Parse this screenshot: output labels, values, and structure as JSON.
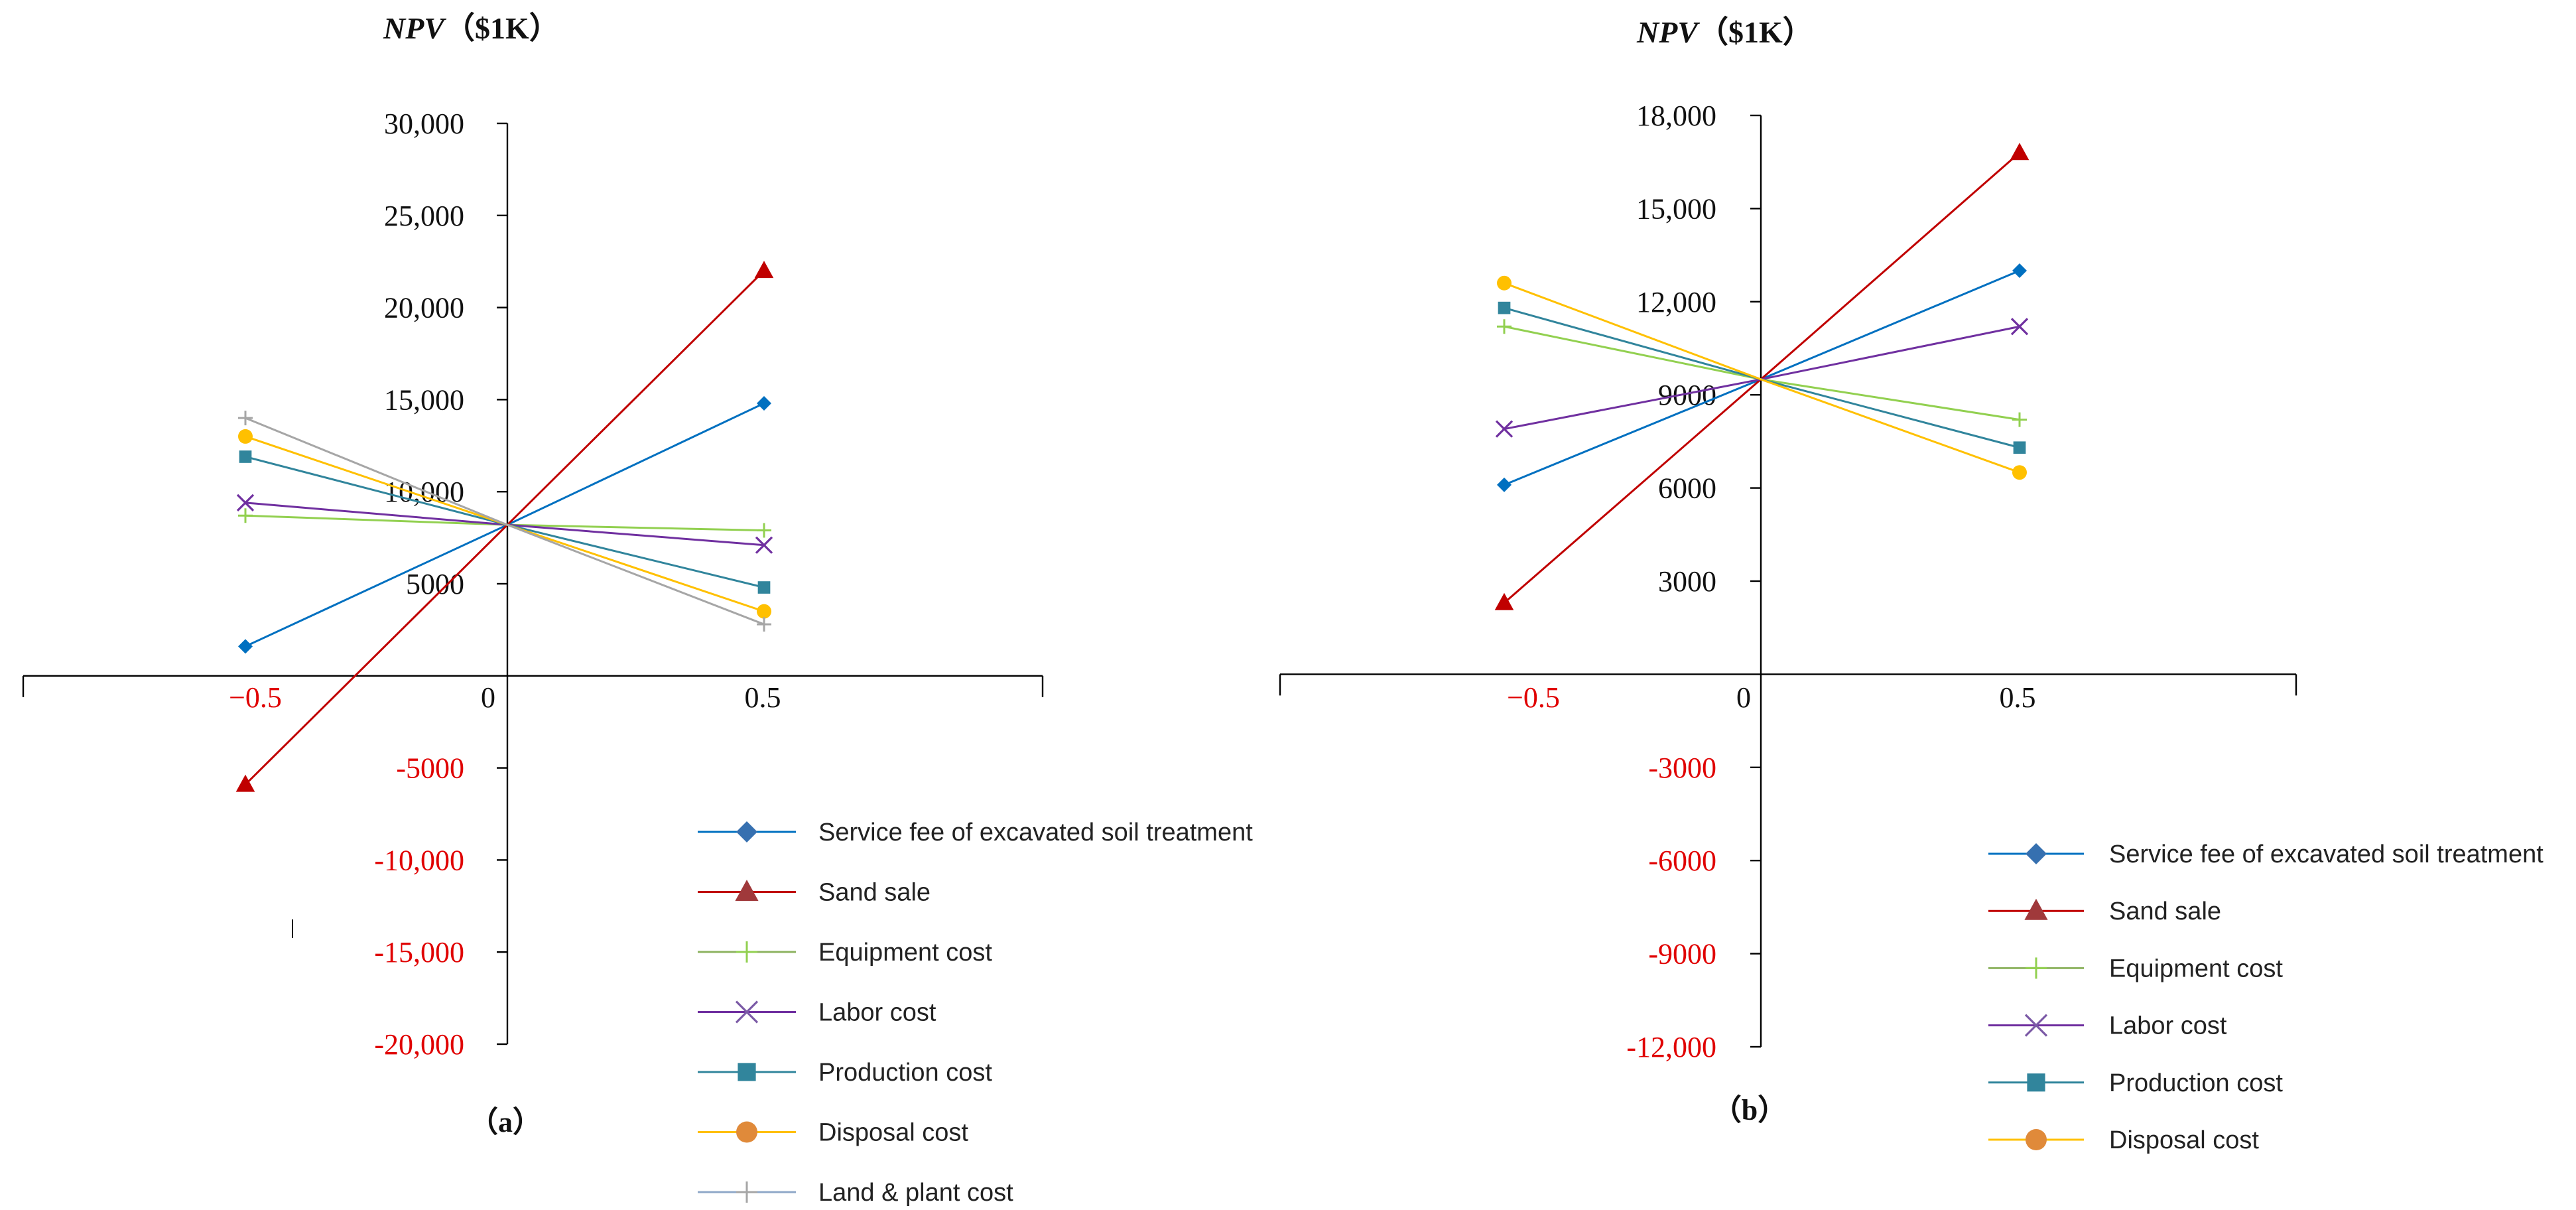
{
  "chart_data": [
    {
      "type": "line",
      "panel_label": "（a）",
      "title_italic": "NPV",
      "title_unit": "（$1K）",
      "x": [
        -0.5,
        0,
        0.5
      ],
      "x_tick_labels": [
        "−0.5",
        "0",
        "0.5"
      ],
      "ylim": [
        -20000,
        30000
      ],
      "y_ticks": [
        {
          "value": 30000,
          "label": "30,000"
        },
        {
          "value": 25000,
          "label": "25,000"
        },
        {
          "value": 20000,
          "label": "20,000"
        },
        {
          "value": 15000,
          "label": "15,000"
        },
        {
          "value": 10000,
          "label": "10,000"
        },
        {
          "value": 5000,
          "label": "5000"
        },
        {
          "value": -5000,
          "label": "-5000"
        },
        {
          "value": -10000,
          "label": "-10,000"
        },
        {
          "value": -15000,
          "label": "-15,000"
        },
        {
          "value": -20000,
          "label": "-20,000"
        }
      ],
      "series": [
        {
          "name": "Service fee of excavated soil treatment",
          "marker": "diamond",
          "color": "#0070C0",
          "values": [
            1600,
            8200,
            14800
          ]
        },
        {
          "name": "Sand sale",
          "marker": "triangle",
          "color": "#C00000",
          "values": [
            -5900,
            8200,
            22000
          ]
        },
        {
          "name": "Equipment cost",
          "marker": "plus",
          "color": "#92D050",
          "values": [
            8700,
            8200,
            7900
          ]
        },
        {
          "name": "Labor cost",
          "marker": "cross",
          "color": "#7030A0",
          "values": [
            9400,
            8200,
            7100
          ]
        },
        {
          "name": "Production cost",
          "marker": "square",
          "color": "#31859C",
          "values": [
            11900,
            8200,
            4800
          ]
        },
        {
          "name": "Disposal cost",
          "marker": "circle",
          "color": "#FFC000",
          "values": [
            13000,
            8200,
            3500
          ]
        },
        {
          "name": "Land & plant cost",
          "marker": "plus",
          "color": "#A6A6A6",
          "values": [
            14000,
            8200,
            2800
          ]
        }
      ]
    },
    {
      "type": "line",
      "panel_label": "（b）",
      "title_italic": "NPV",
      "title_unit": "（$1K）",
      "x": [
        -0.5,
        0,
        0.5
      ],
      "x_tick_labels": [
        "−0.5",
        "0",
        "0.5"
      ],
      "ylim": [
        -12000,
        18000
      ],
      "y_ticks": [
        {
          "value": 18000,
          "label": "18,000"
        },
        {
          "value": 15000,
          "label": "15,000"
        },
        {
          "value": 12000,
          "label": "12,000"
        },
        {
          "value": 9000,
          "label": "9000"
        },
        {
          "value": 6000,
          "label": "6000"
        },
        {
          "value": 3000,
          "label": "3000"
        },
        {
          "value": -3000,
          "label": "-3000"
        },
        {
          "value": -6000,
          "label": "-6000"
        },
        {
          "value": -9000,
          "label": "-9000"
        },
        {
          "value": -12000,
          "label": "-12,000"
        }
      ],
      "series": [
        {
          "name": "Service fee of excavated soil treatment",
          "marker": "diamond",
          "color": "#0070C0",
          "values": [
            6100,
            9500,
            13000
          ]
        },
        {
          "name": "Sand sale",
          "marker": "triangle",
          "color": "#C00000",
          "values": [
            2300,
            9500,
            16800
          ]
        },
        {
          "name": "Equipment cost",
          "marker": "plus",
          "color": "#92D050",
          "values": [
            11200,
            9500,
            8200
          ]
        },
        {
          "name": "Labor cost",
          "marker": "cross",
          "color": "#7030A0",
          "values": [
            7900,
            9500,
            11200
          ]
        },
        {
          "name": "Production cost",
          "marker": "square",
          "color": "#31859C",
          "values": [
            11800,
            9500,
            7300
          ]
        },
        {
          "name": "Disposal cost",
          "marker": "circle",
          "color": "#FFC000",
          "values": [
            12600,
            9500,
            6500
          ]
        }
      ]
    }
  ]
}
